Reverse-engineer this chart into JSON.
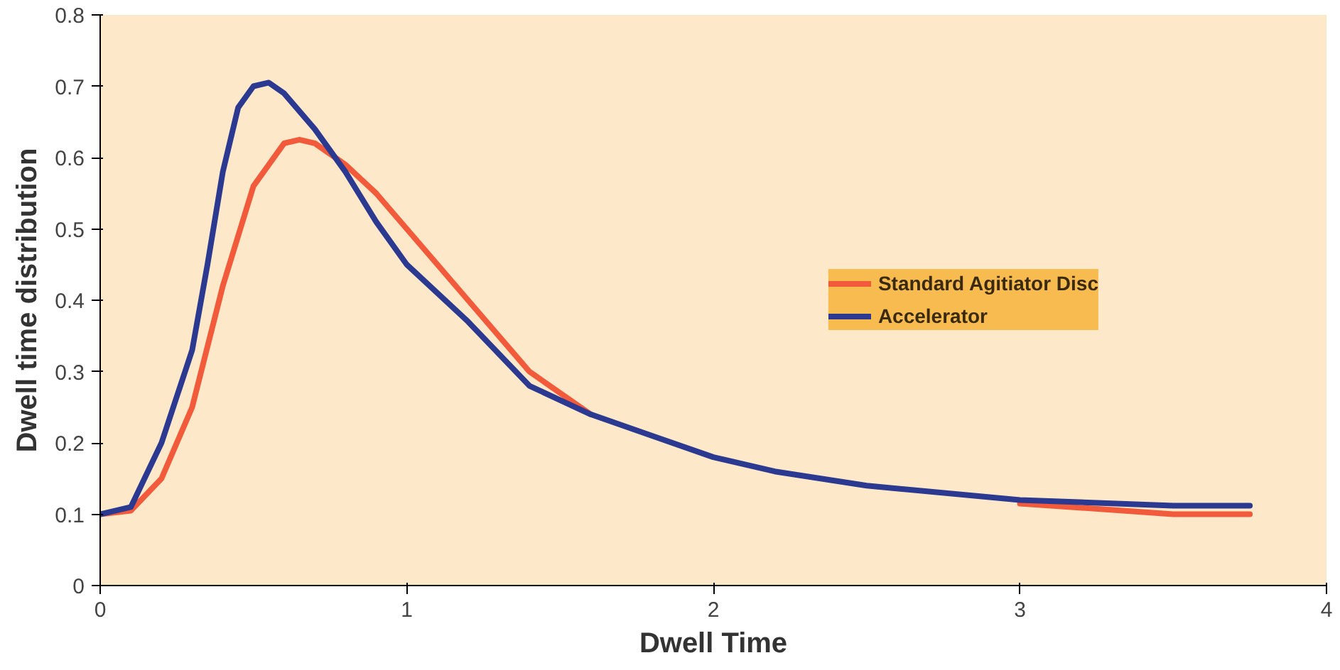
{
  "chart_data": {
    "type": "line",
    "xlabel": "Dwell Time",
    "ylabel": "Dwell time distribution",
    "xlim": [
      0,
      4
    ],
    "ylim": [
      0,
      0.8
    ],
    "xticks": [
      0,
      1,
      2,
      3,
      4
    ],
    "yticks": [
      0,
      0.1,
      0.2,
      0.3,
      0.4,
      0.5,
      0.6,
      0.7,
      0.8
    ],
    "grid": false,
    "legend": "right",
    "marker": "none",
    "line_style": "solid",
    "series": [
      {
        "name": "Standard Agitiator Disc",
        "color": "#f15a3a",
        "x": [
          0,
          0.1,
          0.2,
          0.3,
          0.4,
          0.5,
          0.6,
          0.65,
          0.7,
          0.8,
          0.9,
          1.0,
          1.2,
          1.4,
          1.6,
          1.8,
          2.0,
          2.2,
          2.5,
          3.0,
          3.5,
          3.75
        ],
        "values": [
          0.1,
          0.105,
          0.15,
          0.25,
          0.42,
          0.56,
          0.62,
          0.625,
          0.62,
          0.59,
          0.55,
          0.5,
          0.4,
          0.3,
          0.24,
          null,
          null,
          null,
          null,
          0.115,
          0.1,
          0.1
        ]
      },
      {
        "name": "Accelerator",
        "color": "#2b3990",
        "x": [
          0,
          0.1,
          0.2,
          0.3,
          0.35,
          0.4,
          0.45,
          0.5,
          0.55,
          0.6,
          0.7,
          0.8,
          0.9,
          1.0,
          1.2,
          1.4,
          1.6,
          1.8,
          2.0,
          2.2,
          2.5,
          3.0,
          3.5,
          3.75
        ],
        "values": [
          0.1,
          0.11,
          0.2,
          0.33,
          0.45,
          0.58,
          0.67,
          0.7,
          0.705,
          0.69,
          0.64,
          0.58,
          0.51,
          0.45,
          0.37,
          0.28,
          0.24,
          0.21,
          0.18,
          0.16,
          0.14,
          0.12,
          0.112,
          0.112
        ]
      }
    ]
  }
}
